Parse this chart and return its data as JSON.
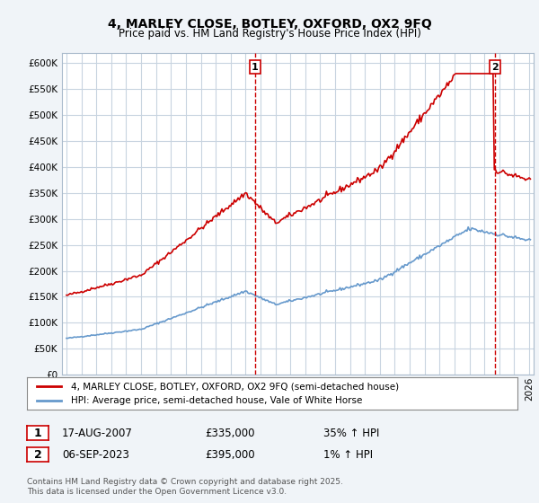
{
  "title_line1": "4, MARLEY CLOSE, BOTLEY, OXFORD, OX2 9FQ",
  "title_line2": "Price paid vs. HM Land Registry's House Price Index (HPI)",
  "legend_line1": "4, MARLEY CLOSE, BOTLEY, OXFORD, OX2 9FQ (semi-detached house)",
  "legend_line2": "HPI: Average price, semi-detached house, Vale of White Horse",
  "annotation1_label": "1",
  "annotation1_date": "17-AUG-2007",
  "annotation1_price": "£335,000",
  "annotation1_hpi": "35% ↑ HPI",
  "annotation2_label": "2",
  "annotation2_date": "06-SEP-2023",
  "annotation2_price": "£395,000",
  "annotation2_hpi": "1% ↑ HPI",
  "footer": "Contains HM Land Registry data © Crown copyright and database right 2025.\nThis data is licensed under the Open Government Licence v3.0.",
  "background_color": "#f0f4f8",
  "plot_background": "#ffffff",
  "grid_color": "#c8d4e0",
  "red_color": "#cc0000",
  "blue_color": "#6699cc",
  "vline_color": "#cc0000",
  "ylim_min": 0,
  "ylim_max": 620000,
  "ytick_step": 50000,
  "x_start_year": 1995,
  "x_end_year": 2026
}
